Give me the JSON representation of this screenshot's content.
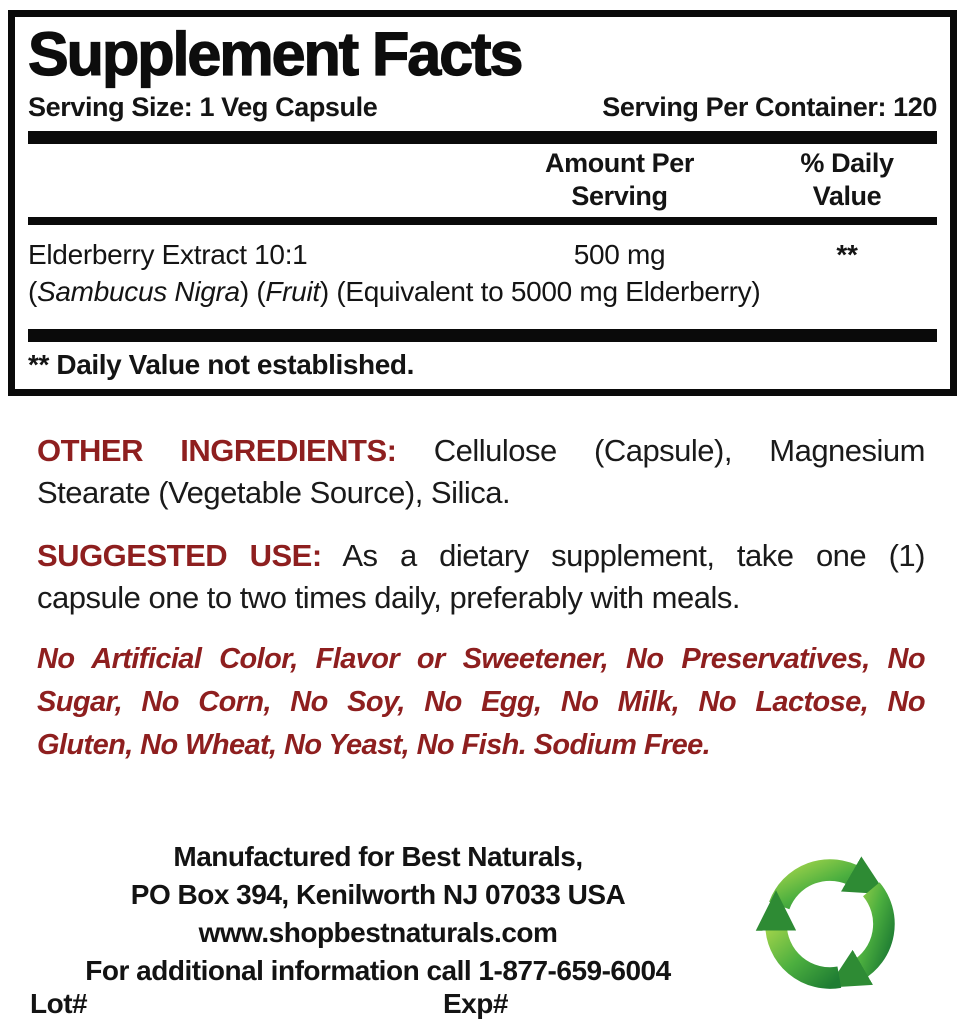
{
  "colors": {
    "accent_red": "#8e1f1f",
    "text_black": "#141414",
    "recycle_green_light": "#9bd14a",
    "recycle_green_dark": "#1f7d33"
  },
  "supplement_panel": {
    "title": "Supplement Facts",
    "serving_size": "Serving Size: 1 Veg Capsule",
    "servings_per_container": "Serving Per Container: 120",
    "columns": {
      "amount_line1": "Amount Per",
      "amount_line2": "Serving",
      "dv_line1": "% Daily",
      "dv_line2": "Value"
    },
    "rows": [
      {
        "name": "Elderberry Extract 10:1",
        "amount": "500 mg",
        "daily_value": "**",
        "detail_segments": [
          {
            "t": "(",
            "i": false
          },
          {
            "t": "Sambucus Nigra",
            "i": true
          },
          {
            "t": ") (",
            "i": false
          },
          {
            "t": "Fruit",
            "i": true
          },
          {
            "t": ") (Equivalent to 5000 mg Elderberry)",
            "i": false
          }
        ]
      }
    ],
    "footnote": "** Daily Value not established."
  },
  "other_ingredients": {
    "label": "OTHER INGREDIENTS:",
    "line1_rest": "Cellulose (Capsule), Magnesium",
    "line2": "Stearate (Vegetable Source), Silica."
  },
  "suggested_use": {
    "label": "SUGGESTED USE:",
    "line1_rest": "As a dietary supplement, take one (1)",
    "line2": "capsule one to two times daily, preferably with meals."
  },
  "claims": {
    "line1": "No Artificial Color, Flavor or Sweetener, No Preservatives, No",
    "line2": "Sugar, No Corn, No Soy, No Egg, No Milk, No Lactose, No",
    "line3": "Gluten, No Wheat, No Yeast, No Fish. Sodium Free."
  },
  "footer": {
    "manufacturer": "Manufactured for Best Naturals,",
    "address": "PO Box 394, Kenilworth NJ 07033 USA",
    "website": "www.shopbestnaturals.com",
    "phone_line": "For additional information call 1-877-659-6004",
    "lot_label": "Lot#",
    "exp_label": "Exp#",
    "recycle_icon": "recycle-symbol"
  }
}
